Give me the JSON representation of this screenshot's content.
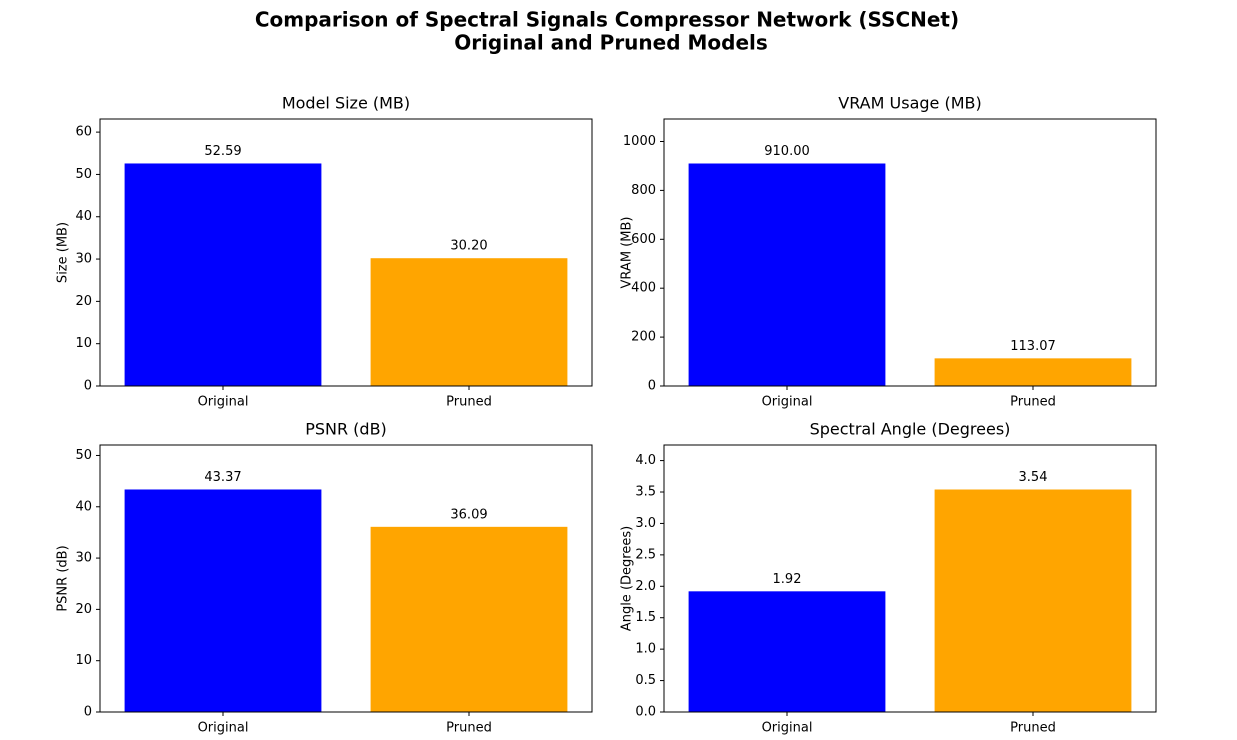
{
  "title": [
    "Comparison of Spectral Signals Compressor Network (SSCNet)",
    "Original and Pruned Models"
  ],
  "chart_data": [
    {
      "type": "bar",
      "title": "Model Size (MB)",
      "y_label": "Size (MB)",
      "categories": [
        "Original",
        "Pruned"
      ],
      "values": [
        52.59,
        30.2
      ],
      "value_labels": [
        "52.59",
        "30.20"
      ],
      "colors": [
        "#0000ff",
        "#ffa500"
      ],
      "ylim": [
        0,
        63.1
      ],
      "yticks": [
        0,
        10,
        20,
        30,
        40,
        50,
        60
      ],
      "grid": false
    },
    {
      "type": "bar",
      "title": "VRAM Usage (MB)",
      "y_label": "VRAM (MB)",
      "categories": [
        "Original",
        "Pruned"
      ],
      "values": [
        910,
        113.07
      ],
      "value_labels": [
        "910.00",
        "113.07"
      ],
      "colors": [
        "#0000ff",
        "#ffa500"
      ],
      "ylim": [
        0,
        1092
      ],
      "yticks": [
        0,
        200,
        400,
        600,
        800,
        1000
      ],
      "grid": false
    },
    {
      "type": "bar",
      "title": "PSNR (dB)",
      "y_label": "PSNR (dB)",
      "categories": [
        "Original",
        "Pruned"
      ],
      "values": [
        43.37,
        36.09
      ],
      "value_labels": [
        "43.37",
        "36.09"
      ],
      "colors": [
        "#0000ff",
        "#ffa500"
      ],
      "ylim": [
        0,
        52.04
      ],
      "yticks": [
        0,
        10,
        20,
        30,
        40,
        50
      ],
      "grid": false
    },
    {
      "type": "bar",
      "title": "Spectral Angle (Degrees)",
      "y_label": "Angle (Degrees)",
      "categories": [
        "Original",
        "Pruned"
      ],
      "values": [
        1.92,
        3.54
      ],
      "value_labels": [
        "1.92",
        "3.54"
      ],
      "colors": [
        "#0000ff",
        "#ffa500"
      ],
      "ylim": [
        0,
        4.248
      ],
      "yticks": [
        {
          "value": 0,
          "label": "0.0"
        },
        0.5,
        {
          "value": 1,
          "label": "1.0"
        },
        1.5,
        {
          "value": 2,
          "label": "2.0"
        },
        2.5,
        {
          "value": 3,
          "label": "3.0"
        },
        3.5,
        {
          "value": 4,
          "label": "4.0"
        }
      ],
      "grid": false
    }
  ]
}
